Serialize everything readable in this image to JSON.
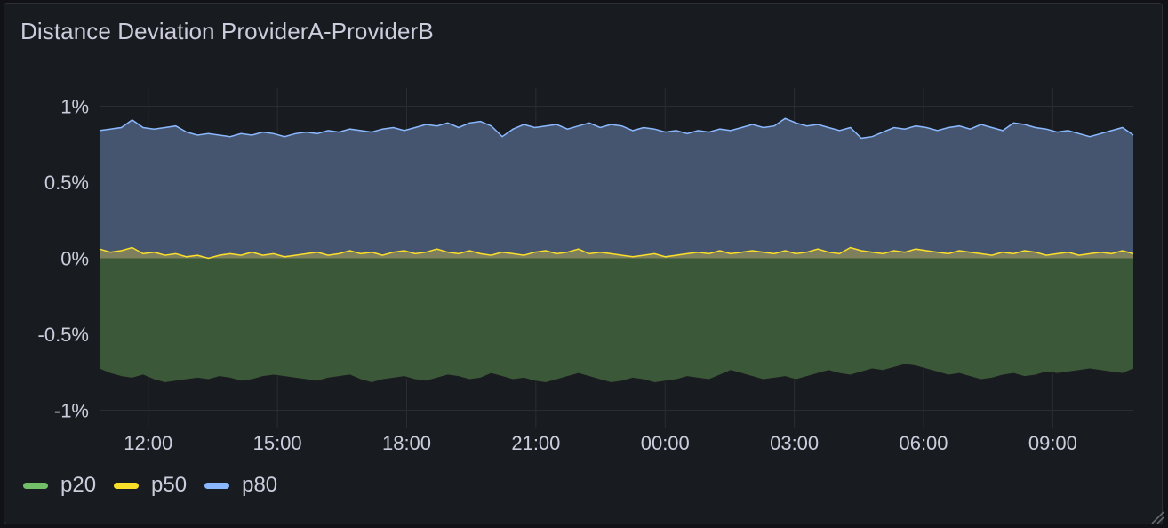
{
  "panel": {
    "title": "Distance Deviation ProviderA-ProviderB"
  },
  "colors": {
    "background": "#181b1f",
    "grid": "#2a2d33",
    "text": "#ccccdc",
    "p20": "#73bf69",
    "p50": "#fade2a",
    "p80": "#8ab8ff"
  },
  "legend": [
    {
      "label": "p20",
      "color": "#73bf69"
    },
    {
      "label": "p50",
      "color": "#fade2a"
    },
    {
      "label": "p80",
      "color": "#8ab8ff"
    }
  ],
  "icons": {
    "resize": "resize-handle-icon"
  },
  "chart_data": {
    "type": "area",
    "title": "Distance Deviation ProviderA-ProviderB",
    "xlabel": "",
    "ylabel": "",
    "x_range": [
      "10:52",
      "10:50 (next day)"
    ],
    "x_range_hours": [
      -1.13,
      22.87
    ],
    "x_ticks": [
      "12:00",
      "15:00",
      "18:00",
      "21:00",
      "00:00",
      "03:00",
      "06:00",
      "09:00"
    ],
    "y_ticks": [
      "1%",
      "0.5%",
      "0%",
      "-0.5%",
      "-1%"
    ],
    "y_tick_values": [
      1,
      0.5,
      0,
      -0.5,
      -1
    ],
    "ylim": [
      -1.12,
      1.12
    ],
    "unit": "%",
    "grid": true,
    "legend_position": "bottom-left",
    "series": [
      {
        "name": "p20",
        "color": "#73bf69",
        "fill": "below-zero-band",
        "values": [
          -0.73,
          -0.76,
          -0.78,
          -0.79,
          -0.77,
          -0.8,
          -0.82,
          -0.81,
          -0.8,
          -0.79,
          -0.8,
          -0.78,
          -0.79,
          -0.81,
          -0.8,
          -0.78,
          -0.77,
          -0.78,
          -0.79,
          -0.8,
          -0.81,
          -0.79,
          -0.78,
          -0.77,
          -0.8,
          -0.82,
          -0.8,
          -0.79,
          -0.78,
          -0.8,
          -0.81,
          -0.79,
          -0.77,
          -0.78,
          -0.8,
          -0.79,
          -0.76,
          -0.78,
          -0.8,
          -0.79,
          -0.81,
          -0.82,
          -0.8,
          -0.78,
          -0.76,
          -0.78,
          -0.8,
          -0.82,
          -0.81,
          -0.79,
          -0.8,
          -0.82,
          -0.81,
          -0.8,
          -0.78,
          -0.79,
          -0.8,
          -0.77,
          -0.74,
          -0.76,
          -0.78,
          -0.8,
          -0.79,
          -0.78,
          -0.8,
          -0.78,
          -0.76,
          -0.74,
          -0.76,
          -0.77,
          -0.75,
          -0.73,
          -0.74,
          -0.72,
          -0.7,
          -0.71,
          -0.73,
          -0.75,
          -0.77,
          -0.76,
          -0.78,
          -0.8,
          -0.79,
          -0.77,
          -0.76,
          -0.78,
          -0.77,
          -0.75,
          -0.76,
          -0.75,
          -0.74,
          -0.73,
          -0.74,
          -0.75,
          -0.76,
          -0.73
        ]
      },
      {
        "name": "p50",
        "color": "#fade2a",
        "fill": "to-zero",
        "values": [
          0.06,
          0.04,
          0.05,
          0.07,
          0.03,
          0.04,
          0.02,
          0.03,
          0.01,
          0.02,
          0.0,
          0.02,
          0.03,
          0.02,
          0.04,
          0.02,
          0.03,
          0.01,
          0.02,
          0.03,
          0.04,
          0.02,
          0.03,
          0.05,
          0.03,
          0.04,
          0.02,
          0.04,
          0.05,
          0.03,
          0.04,
          0.06,
          0.04,
          0.03,
          0.05,
          0.03,
          0.02,
          0.04,
          0.03,
          0.02,
          0.04,
          0.05,
          0.03,
          0.04,
          0.06,
          0.03,
          0.04,
          0.03,
          0.02,
          0.01,
          0.02,
          0.03,
          0.01,
          0.02,
          0.03,
          0.04,
          0.03,
          0.05,
          0.03,
          0.04,
          0.05,
          0.04,
          0.03,
          0.05,
          0.03,
          0.04,
          0.06,
          0.04,
          0.03,
          0.07,
          0.05,
          0.04,
          0.03,
          0.05,
          0.04,
          0.06,
          0.05,
          0.04,
          0.03,
          0.05,
          0.04,
          0.03,
          0.02,
          0.04,
          0.03,
          0.05,
          0.04,
          0.02,
          0.03,
          0.04,
          0.02,
          0.03,
          0.04,
          0.03,
          0.05,
          0.03
        ]
      },
      {
        "name": "p80",
        "color": "#8ab8ff",
        "fill": "to-zero",
        "values": [
          0.84,
          0.85,
          0.86,
          0.91,
          0.86,
          0.85,
          0.86,
          0.87,
          0.83,
          0.81,
          0.82,
          0.81,
          0.8,
          0.82,
          0.81,
          0.83,
          0.82,
          0.8,
          0.82,
          0.83,
          0.82,
          0.84,
          0.83,
          0.85,
          0.84,
          0.83,
          0.85,
          0.86,
          0.84,
          0.86,
          0.88,
          0.87,
          0.89,
          0.86,
          0.89,
          0.9,
          0.87,
          0.8,
          0.85,
          0.88,
          0.86,
          0.87,
          0.88,
          0.85,
          0.87,
          0.89,
          0.86,
          0.88,
          0.87,
          0.84,
          0.86,
          0.85,
          0.83,
          0.84,
          0.82,
          0.84,
          0.83,
          0.85,
          0.84,
          0.86,
          0.88,
          0.86,
          0.87,
          0.92,
          0.89,
          0.87,
          0.88,
          0.86,
          0.84,
          0.86,
          0.79,
          0.8,
          0.83,
          0.86,
          0.85,
          0.87,
          0.86,
          0.84,
          0.86,
          0.87,
          0.85,
          0.88,
          0.86,
          0.84,
          0.89,
          0.88,
          0.86,
          0.85,
          0.83,
          0.84,
          0.82,
          0.8,
          0.82,
          0.84,
          0.86,
          0.81
        ]
      }
    ]
  }
}
